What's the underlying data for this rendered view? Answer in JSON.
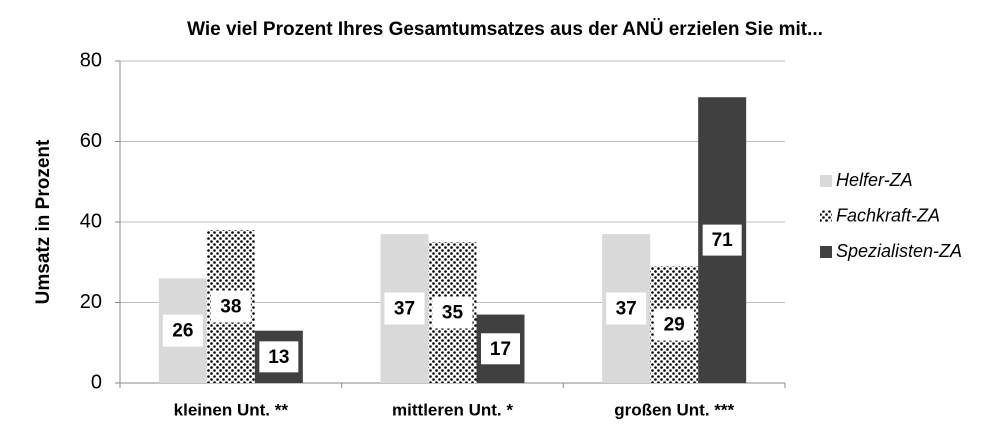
{
  "chart_data": {
    "type": "bar",
    "title": "Wie viel Prozent Ihres Gesamtumsatzes aus der ANÜ erzielen Sie mit...",
    "y_axis_label": "Umsatz in Prozent",
    "categories": [
      "kleinen Unt. **",
      "mittleren Unt. *",
      "großen Unt. ***"
    ],
    "series": [
      {
        "name": "Helfer-ZA",
        "color": "#d9d9d9",
        "values": [
          26,
          37,
          37
        ]
      },
      {
        "name": "Fachkraft-ZA",
        "color": "#000000",
        "pattern": "dots",
        "values": [
          38,
          35,
          29
        ]
      },
      {
        "name": "Spezialisten-ZA",
        "color": "#404040",
        "values": [
          13,
          17,
          71
        ]
      }
    ],
    "ylim": [
      0,
      80
    ],
    "yticks": [
      0,
      20,
      40,
      60,
      80
    ],
    "grid": true,
    "legend": "right"
  }
}
